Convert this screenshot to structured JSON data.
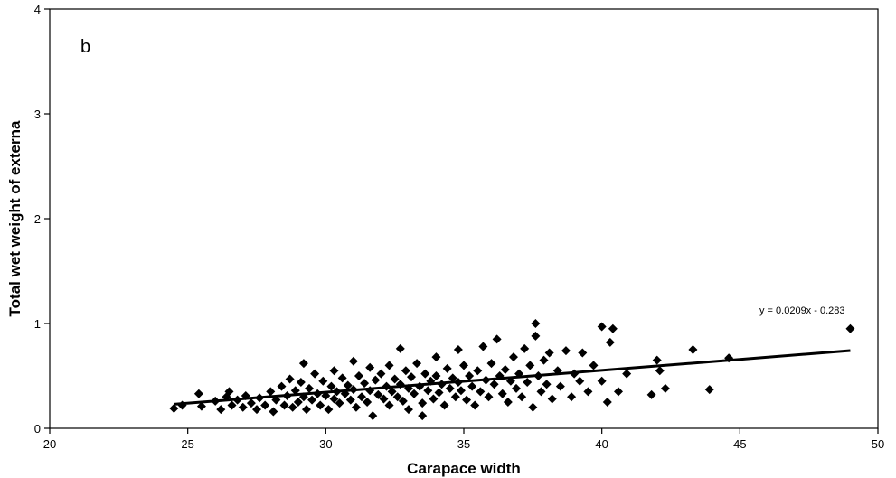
{
  "chart_data": {
    "type": "scatter",
    "panel_label": "b",
    "xlabel": "Carapace width",
    "ylabel": "Total wet weight of externa",
    "xlim": [
      20,
      50
    ],
    "ylim": [
      0,
      4
    ],
    "xticks": [
      "20",
      "25",
      "30",
      "35",
      "40",
      "45",
      "50"
    ],
    "yticks": [
      "0",
      "1",
      "2",
      "3",
      "4"
    ],
    "grid": false,
    "marker": "diamond",
    "marker_color": "#000000",
    "trendline": {
      "equation": "y = 0.0209x - 0.283",
      "slope": 0.0209,
      "intercept": -0.283,
      "x_range": [
        24.5,
        49.0
      ]
    },
    "series": [
      {
        "points": [
          [
            24.5,
            0.19
          ],
          [
            24.8,
            0.22
          ],
          [
            25.4,
            0.33
          ],
          [
            25.5,
            0.21
          ],
          [
            26.0,
            0.26
          ],
          [
            26.2,
            0.18
          ],
          [
            26.4,
            0.3
          ],
          [
            26.5,
            0.35
          ],
          [
            26.6,
            0.22
          ],
          [
            26.8,
            0.27
          ],
          [
            27.0,
            0.2
          ],
          [
            27.1,
            0.31
          ],
          [
            27.3,
            0.24
          ],
          [
            27.5,
            0.18
          ],
          [
            27.6,
            0.29
          ],
          [
            27.8,
            0.22
          ],
          [
            28.0,
            0.35
          ],
          [
            28.1,
            0.16
          ],
          [
            28.2,
            0.27
          ],
          [
            28.4,
            0.4
          ],
          [
            28.5,
            0.22
          ],
          [
            28.6,
            0.31
          ],
          [
            28.7,
            0.47
          ],
          [
            28.8,
            0.2
          ],
          [
            28.9,
            0.36
          ],
          [
            29.0,
            0.25
          ],
          [
            29.1,
            0.44
          ],
          [
            29.2,
            0.3
          ],
          [
            29.2,
            0.62
          ],
          [
            29.3,
            0.18
          ],
          [
            29.4,
            0.38
          ],
          [
            29.5,
            0.27
          ],
          [
            29.6,
            0.52
          ],
          [
            29.7,
            0.33
          ],
          [
            29.8,
            0.22
          ],
          [
            29.9,
            0.45
          ],
          [
            30.0,
            0.31
          ],
          [
            30.1,
            0.18
          ],
          [
            30.2,
            0.4
          ],
          [
            30.3,
            0.28
          ],
          [
            30.3,
            0.55
          ],
          [
            30.4,
            0.35
          ],
          [
            30.5,
            0.24
          ],
          [
            30.6,
            0.48
          ],
          [
            30.7,
            0.33
          ],
          [
            30.8,
            0.41
          ],
          [
            30.9,
            0.27
          ],
          [
            31.0,
            0.64
          ],
          [
            31.0,
            0.37
          ],
          [
            31.1,
            0.2
          ],
          [
            31.2,
            0.5
          ],
          [
            31.3,
            0.3
          ],
          [
            31.4,
            0.43
          ],
          [
            31.5,
            0.25
          ],
          [
            31.6,
            0.58
          ],
          [
            31.6,
            0.36
          ],
          [
            31.7,
            0.12
          ],
          [
            31.8,
            0.46
          ],
          [
            31.9,
            0.32
          ],
          [
            32.0,
            0.52
          ],
          [
            32.1,
            0.28
          ],
          [
            32.2,
            0.4
          ],
          [
            32.3,
            0.22
          ],
          [
            32.3,
            0.6
          ],
          [
            32.4,
            0.35
          ],
          [
            32.5,
            0.47
          ],
          [
            32.6,
            0.3
          ],
          [
            32.7,
            0.76
          ],
          [
            32.7,
            0.42
          ],
          [
            32.8,
            0.26
          ],
          [
            32.9,
            0.55
          ],
          [
            33.0,
            0.38
          ],
          [
            33.0,
            0.18
          ],
          [
            33.1,
            0.49
          ],
          [
            33.2,
            0.33
          ],
          [
            33.3,
            0.62
          ],
          [
            33.4,
            0.4
          ],
          [
            33.5,
            0.24
          ],
          [
            33.5,
            0.12
          ],
          [
            33.6,
            0.52
          ],
          [
            33.7,
            0.36
          ],
          [
            33.8,
            0.45
          ],
          [
            33.9,
            0.28
          ],
          [
            34.0,
            0.68
          ],
          [
            34.0,
            0.5
          ],
          [
            34.1,
            0.34
          ],
          [
            34.2,
            0.42
          ],
          [
            34.3,
            0.22
          ],
          [
            34.4,
            0.57
          ],
          [
            34.5,
            0.38
          ],
          [
            34.6,
            0.48
          ],
          [
            34.7,
            0.3
          ],
          [
            34.8,
            0.75
          ],
          [
            34.8,
            0.44
          ],
          [
            34.9,
            0.36
          ],
          [
            35.0,
            0.6
          ],
          [
            35.1,
            0.27
          ],
          [
            35.2,
            0.5
          ],
          [
            35.3,
            0.4
          ],
          [
            35.4,
            0.22
          ],
          [
            35.5,
            0.55
          ],
          [
            35.6,
            0.35
          ],
          [
            35.7,
            0.78
          ],
          [
            35.8,
            0.46
          ],
          [
            35.9,
            0.3
          ],
          [
            36.0,
            0.62
          ],
          [
            36.1,
            0.42
          ],
          [
            36.2,
            0.85
          ],
          [
            36.3,
            0.5
          ],
          [
            36.4,
            0.33
          ],
          [
            36.5,
            0.56
          ],
          [
            36.6,
            0.25
          ],
          [
            36.7,
            0.45
          ],
          [
            36.8,
            0.68
          ],
          [
            36.9,
            0.38
          ],
          [
            37.0,
            0.52
          ],
          [
            37.1,
            0.3
          ],
          [
            37.2,
            0.76
          ],
          [
            37.3,
            0.44
          ],
          [
            37.4,
            0.6
          ],
          [
            37.5,
            0.2
          ],
          [
            37.6,
            0.88
          ],
          [
            37.6,
            1.0
          ],
          [
            37.7,
            0.5
          ],
          [
            37.8,
            0.35
          ],
          [
            37.9,
            0.65
          ],
          [
            38.0,
            0.42
          ],
          [
            38.1,
            0.72
          ],
          [
            38.2,
            0.28
          ],
          [
            38.4,
            0.55
          ],
          [
            38.5,
            0.4
          ],
          [
            38.7,
            0.74
          ],
          [
            38.9,
            0.3
          ],
          [
            39.0,
            0.52
          ],
          [
            39.2,
            0.45
          ],
          [
            39.3,
            0.72
          ],
          [
            39.5,
            0.35
          ],
          [
            39.7,
            0.6
          ],
          [
            40.0,
            0.97
          ],
          [
            40.0,
            0.45
          ],
          [
            40.2,
            0.25
          ],
          [
            40.3,
            0.82
          ],
          [
            40.4,
            0.95
          ],
          [
            40.6,
            0.35
          ],
          [
            40.9,
            0.52
          ],
          [
            41.8,
            0.32
          ],
          [
            42.0,
            0.65
          ],
          [
            42.1,
            0.55
          ],
          [
            42.3,
            0.38
          ],
          [
            43.3,
            0.75
          ],
          [
            43.9,
            0.37
          ],
          [
            44.6,
            0.67
          ],
          [
            49.0,
            0.95
          ]
        ]
      }
    ]
  }
}
